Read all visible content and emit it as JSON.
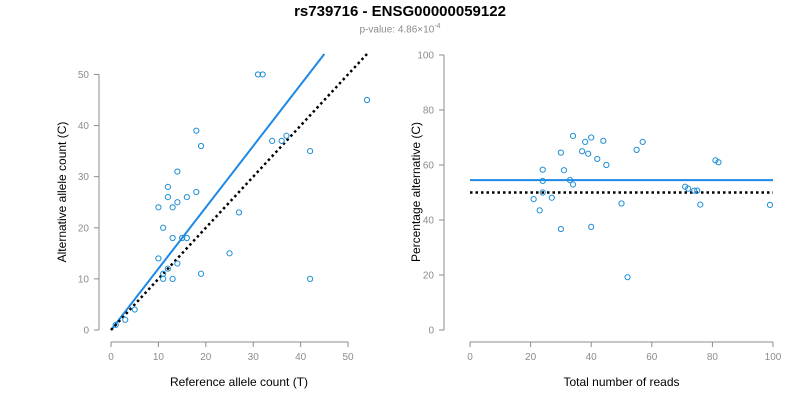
{
  "title": "rs739716 - ENSG00000059122",
  "subtitle": {
    "prefix": "p-value: ",
    "mantissa": "4.86×10",
    "exponent": "-4"
  },
  "colors": {
    "points": "#1f8fd6",
    "fit_line": "#1e88e5",
    "reference_line": "#000000",
    "axis": "#8c8c8c"
  },
  "chart_data": [
    {
      "type": "scatter",
      "xlabel": "Reference allele count (T)",
      "ylabel": "Alternative allele count (C)",
      "xlim": [
        0,
        54
      ],
      "ylim": [
        0,
        54
      ],
      "xticks": [
        0,
        10,
        20,
        30,
        40,
        50
      ],
      "yticks": [
        0,
        10,
        20,
        30,
        40,
        50
      ],
      "points": [
        [
          1,
          1
        ],
        [
          3,
          2
        ],
        [
          5,
          4
        ],
        [
          10,
          24
        ],
        [
          10,
          14
        ],
        [
          11,
          20
        ],
        [
          11,
          11
        ],
        [
          11,
          10
        ],
        [
          12,
          28
        ],
        [
          12,
          26
        ],
        [
          12,
          12
        ],
        [
          13,
          24
        ],
        [
          13,
          18
        ],
        [
          13,
          10
        ],
        [
          14,
          31
        ],
        [
          14,
          25
        ],
        [
          14,
          13
        ],
        [
          15,
          18
        ],
        [
          16,
          26
        ],
        [
          16,
          18
        ],
        [
          18,
          39
        ],
        [
          18,
          27
        ],
        [
          19,
          36
        ],
        [
          19,
          11
        ],
        [
          25,
          15
        ],
        [
          27,
          23
        ],
        [
          31,
          50
        ],
        [
          32,
          50
        ],
        [
          34,
          37
        ],
        [
          36,
          37
        ],
        [
          37,
          38
        ],
        [
          42,
          35
        ],
        [
          42,
          10
        ],
        [
          54,
          45
        ]
      ],
      "lines": [
        {
          "role": "fit",
          "from": [
            0,
            0
          ],
          "to": [
            45,
            54
          ]
        },
        {
          "role": "reference",
          "style": "dotted",
          "from": [
            0,
            0
          ],
          "to": [
            54,
            54
          ]
        }
      ]
    },
    {
      "type": "scatter",
      "xlabel": "Total number of reads",
      "ylabel": "Percentage alternative (C)",
      "xlim": [
        0,
        100
      ],
      "ylim": [
        0,
        100
      ],
      "xticks": [
        0,
        20,
        40,
        60,
        80,
        100
      ],
      "yticks": [
        0,
        20,
        40,
        60,
        80,
        100
      ],
      "points": [
        [
          21,
          47.6
        ],
        [
          23,
          43.5
        ],
        [
          24,
          58.3
        ],
        [
          24,
          54.2
        ],
        [
          24,
          50
        ],
        [
          27,
          48.1
        ],
        [
          30,
          36.7
        ],
        [
          30,
          64.5
        ],
        [
          31,
          58.1
        ],
        [
          33,
          54.5
        ],
        [
          34,
          70.6
        ],
        [
          34,
          52.9
        ],
        [
          37,
          65
        ],
        [
          38,
          68.4
        ],
        [
          39,
          64.1
        ],
        [
          40,
          70
        ],
        [
          40,
          37.5
        ],
        [
          42,
          62.2
        ],
        [
          44,
          68.8
        ],
        [
          45,
          60
        ],
        [
          50,
          46
        ],
        [
          52,
          19.2
        ],
        [
          55,
          65.5
        ],
        [
          57,
          68.4
        ],
        [
          71,
          52.1
        ],
        [
          72,
          51.4
        ],
        [
          74,
          50.7
        ],
        [
          75,
          50.7
        ],
        [
          76,
          45.6
        ],
        [
          81,
          61.7
        ],
        [
          82,
          61
        ],
        [
          99,
          45.5
        ]
      ],
      "lines": [
        {
          "role": "fit",
          "from": [
            0,
            54.5
          ],
          "to": [
            100,
            54.5
          ]
        },
        {
          "role": "reference",
          "style": "dotted",
          "from": [
            0,
            50
          ],
          "to": [
            100,
            50
          ]
        }
      ]
    }
  ]
}
